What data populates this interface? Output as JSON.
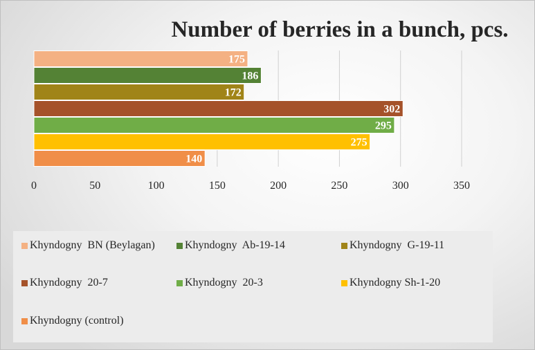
{
  "chart_data": {
    "type": "bar",
    "orientation": "horizontal",
    "title": "Number of berries in a bunch, pcs.",
    "xlabel": "",
    "ylabel": "",
    "xlim": [
      0,
      350
    ],
    "x_ticks": [
      0,
      50,
      100,
      150,
      200,
      250,
      300,
      350
    ],
    "grid": true,
    "legend_position": "bottom",
    "series": [
      {
        "name": "Khyndogny  BN (Beylagan)",
        "value": 175,
        "color": "#f4b183"
      },
      {
        "name": "Khyndogny  Ab-19-14",
        "value": 186,
        "color": "#548235"
      },
      {
        "name": "Khyndogny  G-19-11",
        "value": 172,
        "color": "#a08418"
      },
      {
        "name": "Khyndogny  20-7",
        "value": 302,
        "color": "#a5522a"
      },
      {
        "name": "Khyndogny  20-3",
        "value": 295,
        "color": "#70ad47"
      },
      {
        "name": "Khyndogny Sh-1-20",
        "value": 275,
        "color": "#ffc000"
      },
      {
        "name": "Khyndogny (control)",
        "value": 140,
        "color": "#f08e48"
      }
    ]
  }
}
